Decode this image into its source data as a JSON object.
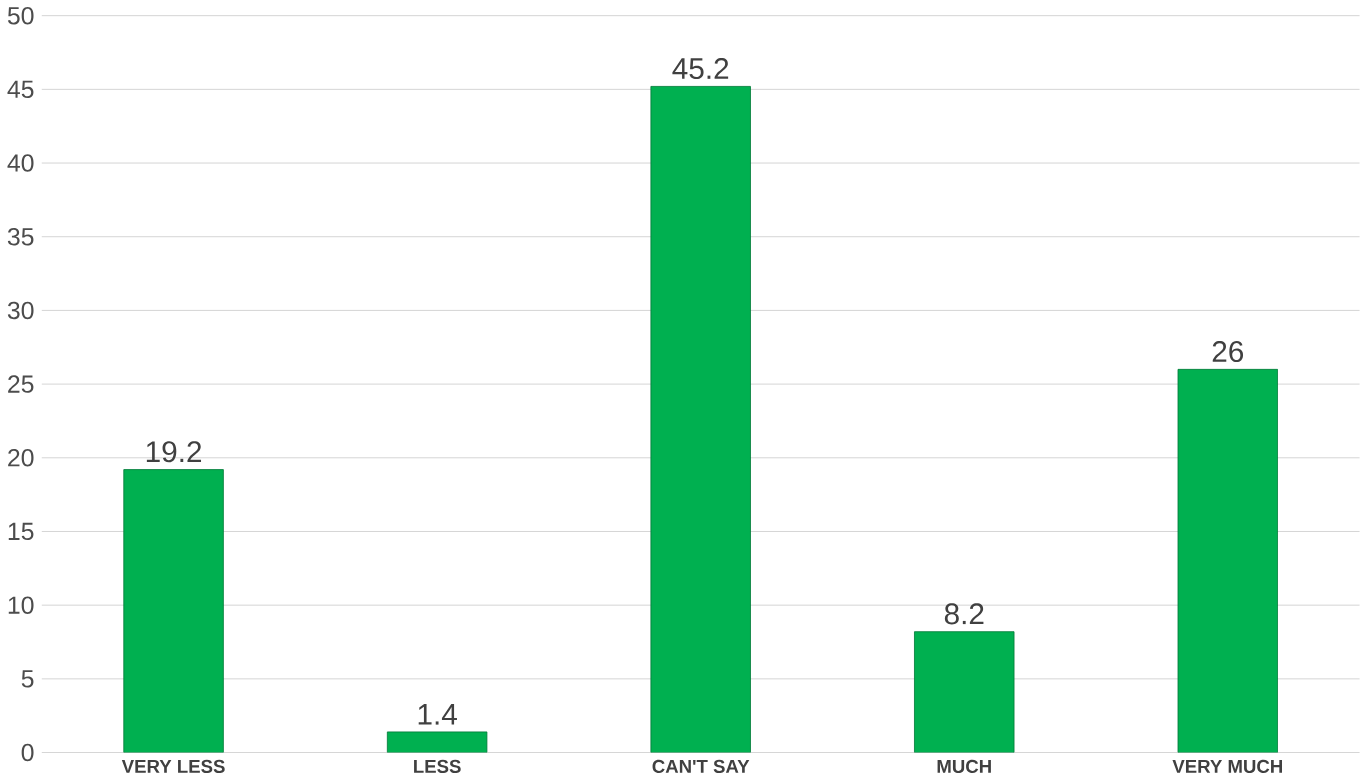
{
  "chart_data": {
    "type": "bar",
    "categories": [
      "VERY LESS",
      "LESS",
      "CAN'T SAY",
      "MUCH",
      "VERY MUCH"
    ],
    "values": [
      19.2,
      1.4,
      45.2,
      8.2,
      26
    ],
    "color": "#00b050",
    "ylim": [
      0,
      50
    ],
    "yticks": [
      0,
      5,
      10,
      15,
      20,
      25,
      30,
      35,
      40,
      45,
      50
    ],
    "grid": "y",
    "data_labels": true
  }
}
